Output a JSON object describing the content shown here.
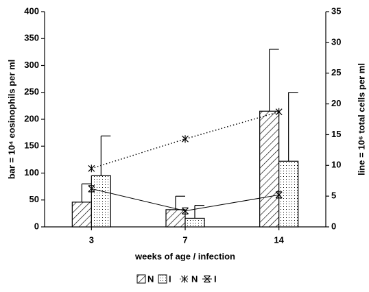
{
  "chart_data": {
    "type": "bar",
    "x_label": "weeks of age / infection",
    "y_label": "bar = 10⁴ eosinophils per ml",
    "y2_label": "line = 10⁶ total cells per ml",
    "categories": [
      "3",
      "7",
      "14"
    ],
    "series": [
      {
        "name": "N",
        "type": "bar",
        "pattern": "hatch",
        "color": "#000000",
        "values": [
          46,
          32,
          215
        ],
        "errors": [
          34,
          25,
          115
        ]
      },
      {
        "name": "I",
        "type": "bar",
        "pattern": "dots",
        "color": "#000000",
        "values": [
          95,
          16,
          122
        ],
        "errors": [
          74,
          24,
          128
        ]
      },
      {
        "name": "N",
        "type": "line",
        "axis": "y2",
        "style": "dotted",
        "color": "#000000",
        "values": [
          9.5,
          14.3,
          18.7
        ]
      },
      {
        "name": "I",
        "type": "line",
        "axis": "y2",
        "style": "solid",
        "color": "#000000",
        "values": [
          6.2,
          2.6,
          5.2
        ]
      }
    ],
    "ylim": [
      0,
      400
    ],
    "yticks": [
      0,
      50,
      100,
      150,
      200,
      250,
      300,
      350,
      400
    ],
    "y2lim": [
      0,
      35
    ],
    "y2ticks": [
      0,
      5,
      10,
      15,
      20,
      25,
      30,
      35
    ]
  }
}
